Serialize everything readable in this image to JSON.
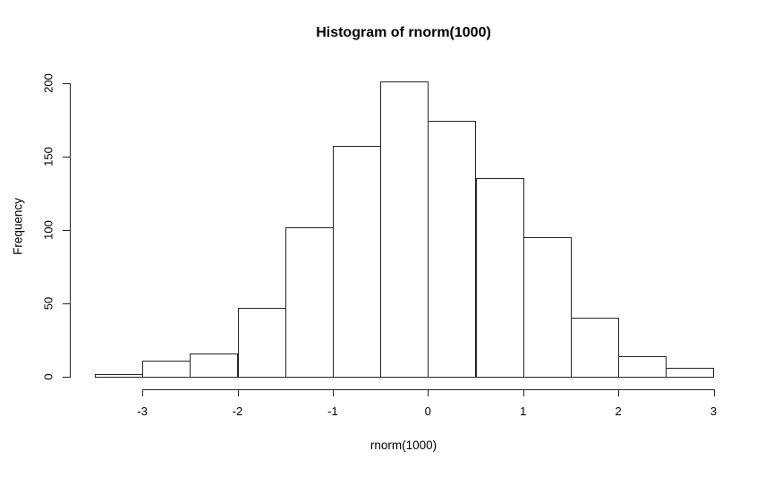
{
  "chart_data": {
    "type": "bar",
    "subtype": "histogram",
    "title": "Histogram of rnorm(1000)",
    "xlabel": "rnorm(1000)",
    "ylabel": "Frequency",
    "bin_breaks": [
      -3.5,
      -3.0,
      -2.5,
      -2.0,
      -1.5,
      -1.0,
      -0.5,
      0.0,
      0.5,
      1.0,
      1.5,
      2.0,
      2.5,
      3.0
    ],
    "counts": [
      2,
      11,
      16,
      47,
      102,
      157,
      201,
      174,
      135,
      95,
      40,
      14,
      6
    ],
    "total_n": 1000,
    "x_ticks": [
      "-3",
      "-2",
      "-1",
      "0",
      "1",
      "2",
      "3"
    ],
    "x_tick_values": [
      -3,
      -2,
      -1,
      0,
      1,
      2,
      3
    ],
    "y_ticks": [
      "0",
      "50",
      "100",
      "150",
      "200"
    ],
    "y_tick_values": [
      0,
      50,
      100,
      150,
      200
    ],
    "xlim": [
      -3.5,
      3.0
    ],
    "ylim": [
      0,
      200
    ],
    "grid": false,
    "legend_position": "none",
    "bar_fill": "#ffffff",
    "bar_border": "#262626",
    "axis_color": "#262626",
    "text_color": "#000000",
    "background": "#ffffff"
  }
}
